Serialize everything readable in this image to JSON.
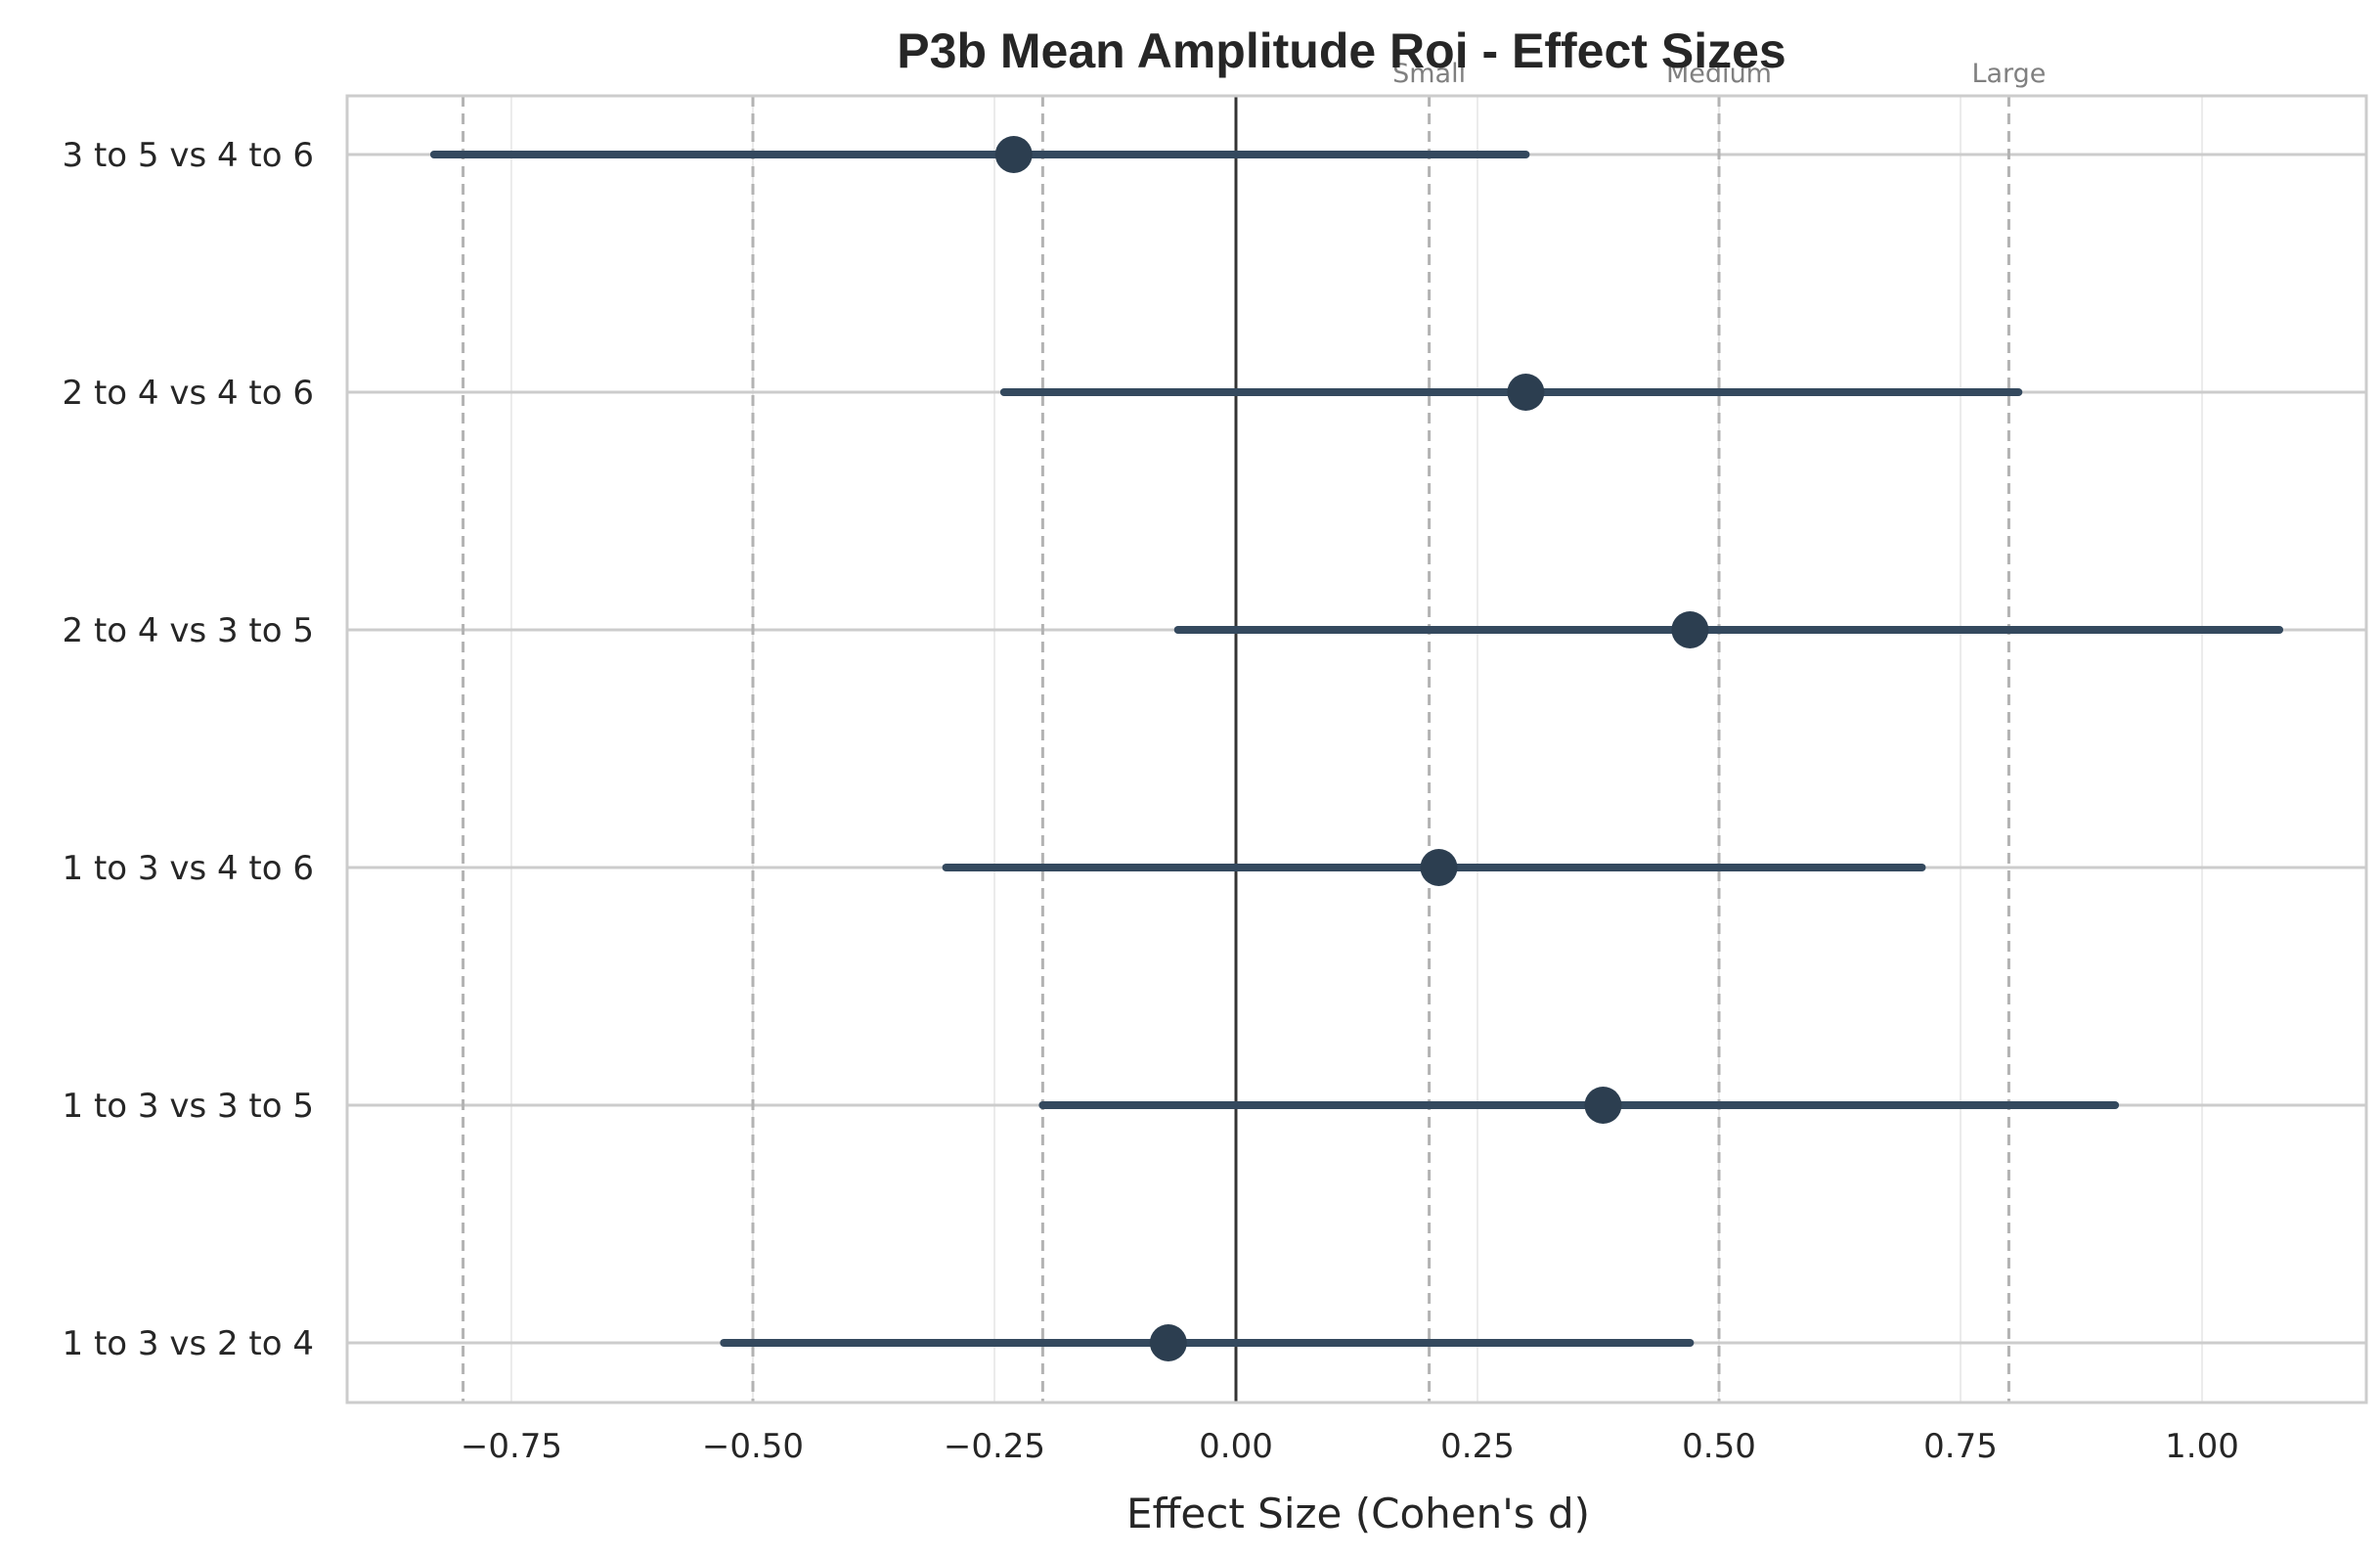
{
  "chart_data": {
    "type": "forest",
    "title": "P3b Mean Amplitude Roi - Effect Sizes",
    "xlabel": "Effect Size (Cohen's d)",
    "ylabel": "",
    "xlim": [
      -0.92,
      1.17
    ],
    "xticks": [
      -0.75,
      -0.5,
      -0.25,
      0.0,
      0.25,
      0.5,
      0.75,
      1.0
    ],
    "xtick_labels": [
      "−0.75",
      "−0.50",
      "−0.25",
      "0.00",
      "0.25",
      "0.50",
      "0.75",
      "1.00"
    ],
    "grid": true,
    "marker_color": "#2c3e50",
    "line_color": "#34495e",
    "zero_line_color": "#333333",
    "reference_lines": [
      {
        "value": -0.8,
        "label": ""
      },
      {
        "value": -0.5,
        "label": ""
      },
      {
        "value": -0.2,
        "label": ""
      },
      {
        "value": 0.2,
        "label": "Small"
      },
      {
        "value": 0.5,
        "label": "Medium"
      },
      {
        "value": 0.8,
        "label": "Large"
      }
    ],
    "comparisons": [
      {
        "label": "3 to 5 vs 4 to 6",
        "d": -0.23,
        "ci_low": -0.83,
        "ci_high": 0.3
      },
      {
        "label": "2 to 4 vs 4 to 6",
        "d": 0.3,
        "ci_low": -0.24,
        "ci_high": 0.81
      },
      {
        "label": "2 to 4 vs 3 to 5",
        "d": 0.47,
        "ci_low": -0.06,
        "ci_high": 1.08
      },
      {
        "label": "1 to 3 vs 4 to 6",
        "d": 0.21,
        "ci_low": -0.3,
        "ci_high": 0.71
      },
      {
        "label": "1 to 3 vs 3 to 5",
        "d": 0.38,
        "ci_low": -0.2,
        "ci_high": 0.91
      },
      {
        "label": "1 to 3 vs 2 to 4",
        "d": -0.07,
        "ci_low": -0.53,
        "ci_high": 0.47
      }
    ]
  }
}
